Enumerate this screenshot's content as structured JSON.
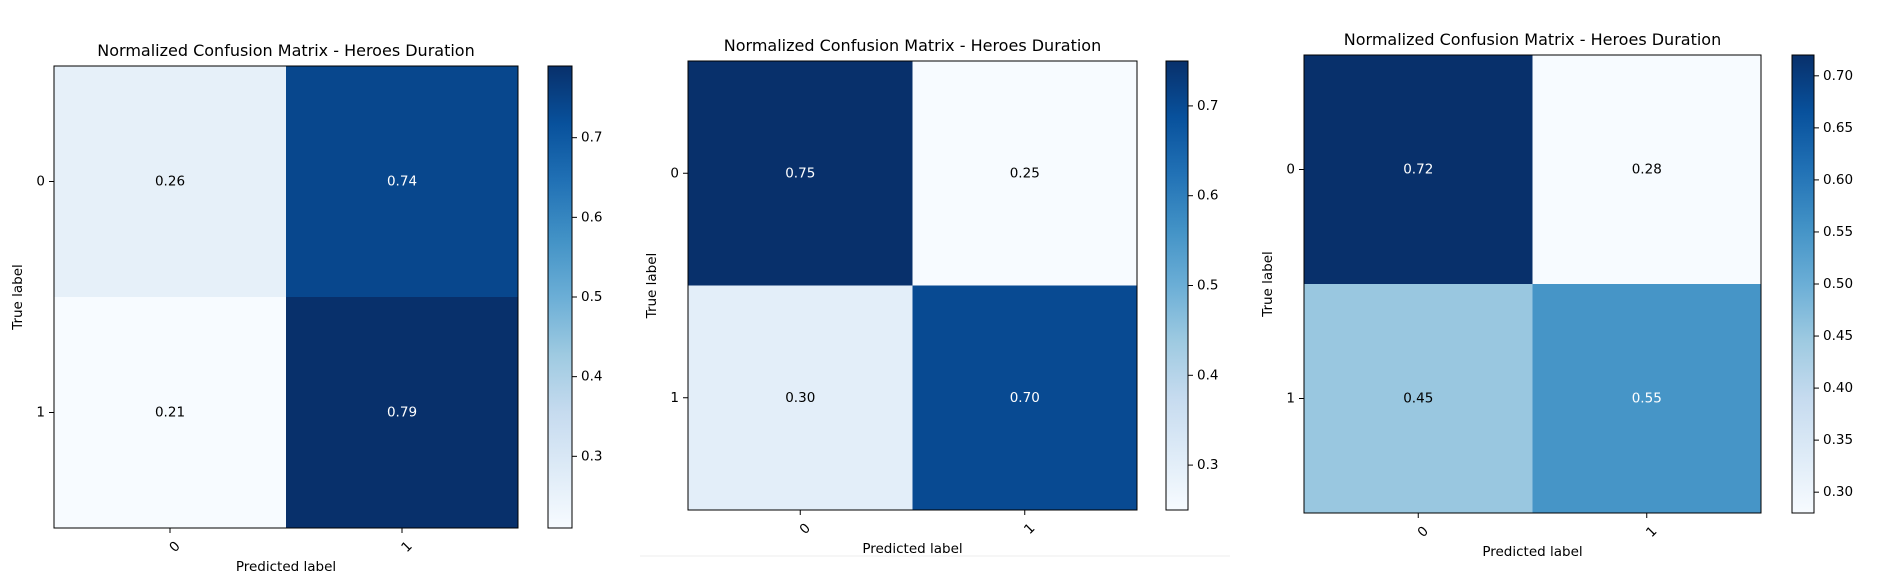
{
  "chart_data": [
    {
      "type": "heatmap",
      "title": "Normalized Confusion Matrix - Heroes Duration",
      "xlabel": "Predicted label",
      "ylabel": "True label",
      "x_categories": [
        "0",
        "1"
      ],
      "y_categories": [
        "0",
        "1"
      ],
      "values": [
        [
          0.26,
          0.74
        ],
        [
          0.21,
          0.79
        ]
      ],
      "cell_labels": [
        [
          "0.26",
          "0.74"
        ],
        [
          "0.21",
          "0.79"
        ]
      ],
      "colormap": "Blues",
      "colorbar": {
        "range": [
          0.21,
          0.79
        ],
        "ticks": [
          0.3,
          0.4,
          0.5,
          0.6,
          0.7
        ],
        "tick_labels": [
          "0.3",
          "0.4",
          "0.5",
          "0.6",
          "0.7"
        ]
      },
      "grid": false,
      "legend": "none"
    },
    {
      "type": "heatmap",
      "title": "Normalized Confusion Matrix - Heroes Duration",
      "xlabel": "Predicted label",
      "ylabel": "True label",
      "x_categories": [
        "0",
        "1"
      ],
      "y_categories": [
        "0",
        "1"
      ],
      "values": [
        [
          0.75,
          0.25
        ],
        [
          0.3,
          0.7
        ]
      ],
      "cell_labels": [
        [
          "0.75",
          "0.25"
        ],
        [
          "0.30",
          "0.70"
        ]
      ],
      "colormap": "Blues",
      "colorbar": {
        "range": [
          0.25,
          0.75
        ],
        "ticks": [
          0.3,
          0.4,
          0.5,
          0.6,
          0.7
        ],
        "tick_labels": [
          "0.3",
          "0.4",
          "0.5",
          "0.6",
          "0.7"
        ]
      },
      "grid": false,
      "legend": "none"
    },
    {
      "type": "heatmap",
      "title": "Normalized Confusion Matrix - Heroes Duration",
      "xlabel": "Predicted label",
      "ylabel": "True label",
      "x_categories": [
        "0",
        "1"
      ],
      "y_categories": [
        "0",
        "1"
      ],
      "values": [
        [
          0.72,
          0.28
        ],
        [
          0.45,
          0.55
        ]
      ],
      "cell_labels": [
        [
          "0.72",
          "0.28"
        ],
        [
          "0.45",
          "0.55"
        ]
      ],
      "colormap": "Blues",
      "colorbar": {
        "range": [
          0.28,
          0.72
        ],
        "ticks": [
          0.3,
          0.35,
          0.4,
          0.45,
          0.5,
          0.55,
          0.6,
          0.65,
          0.7
        ],
        "tick_labels": [
          "0.30",
          "0.35",
          "0.40",
          "0.45",
          "0.50",
          "0.55",
          "0.60",
          "0.65",
          "0.70"
        ]
      },
      "grid": false,
      "legend": "none"
    }
  ]
}
